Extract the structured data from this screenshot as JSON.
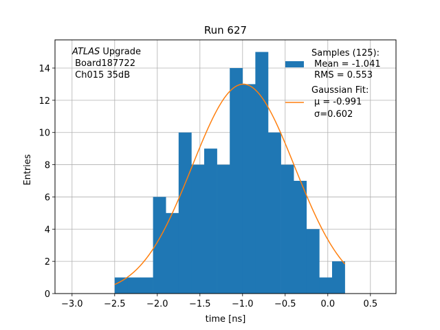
{
  "chart_data": {
    "type": "bar",
    "title": "Run 627",
    "xlabel": "time [ns]",
    "ylabel": "Entries",
    "xlim": [
      -3.2,
      0.8
    ],
    "ylim": [
      0,
      15.75
    ],
    "xticks": [
      -3.0,
      -2.5,
      -2.0,
      -1.5,
      -1.0,
      -0.5,
      0.0,
      0.5
    ],
    "xtick_labels": [
      "−3.0",
      "−2.5",
      "−2.0",
      "−1.5",
      "−1.0",
      "−0.5",
      "0.0",
      "0.5"
    ],
    "yticks": [
      0,
      2,
      4,
      6,
      8,
      10,
      12,
      14
    ],
    "ytick_labels": [
      "0",
      "2",
      "4",
      "6",
      "8",
      "10",
      "12",
      "14"
    ],
    "grid": true,
    "bar_color": "#1f77b4",
    "fit_color": "#ff7f0e",
    "bin_edges": [
      -2.5,
      -2.35,
      -2.2,
      -2.05,
      -1.9,
      -1.75,
      -1.6,
      -1.45,
      -1.3,
      -1.15,
      -1.0,
      -0.85,
      -0.7,
      -0.55,
      -0.4,
      -0.25,
      -0.1,
      0.05,
      0.2
    ],
    "counts": [
      1,
      1,
      1,
      6,
      5,
      10,
      8,
      9,
      8,
      14,
      13,
      15,
      10,
      8,
      7,
      4,
      1,
      2
    ],
    "hist_label": "Samples (125):\n Mean = -1.041\n RMS = 0.553",
    "fit": {
      "label": "Gaussian Fit:\n $\\mu$ = -0.991\n $\\sigma$=0.602",
      "mu": -0.991,
      "sigma": 0.602,
      "amplitude": 13.0,
      "x_range": [
        -2.5,
        0.2
      ]
    },
    "legend_position": "upper right",
    "annotation": {
      "italic": "ATLAS",
      "line1_rest": " Upgrade",
      "line2": " Board187722",
      "line3": " Ch015 35dB"
    },
    "legend": {
      "samples_lines": [
        "Samples (125):",
        " Mean = -1.041",
        " RMS = 0.553"
      ],
      "fit_lines": [
        "Gaussian Fit:",
        "μ = -0.991",
        "σ=0.602"
      ]
    }
  }
}
